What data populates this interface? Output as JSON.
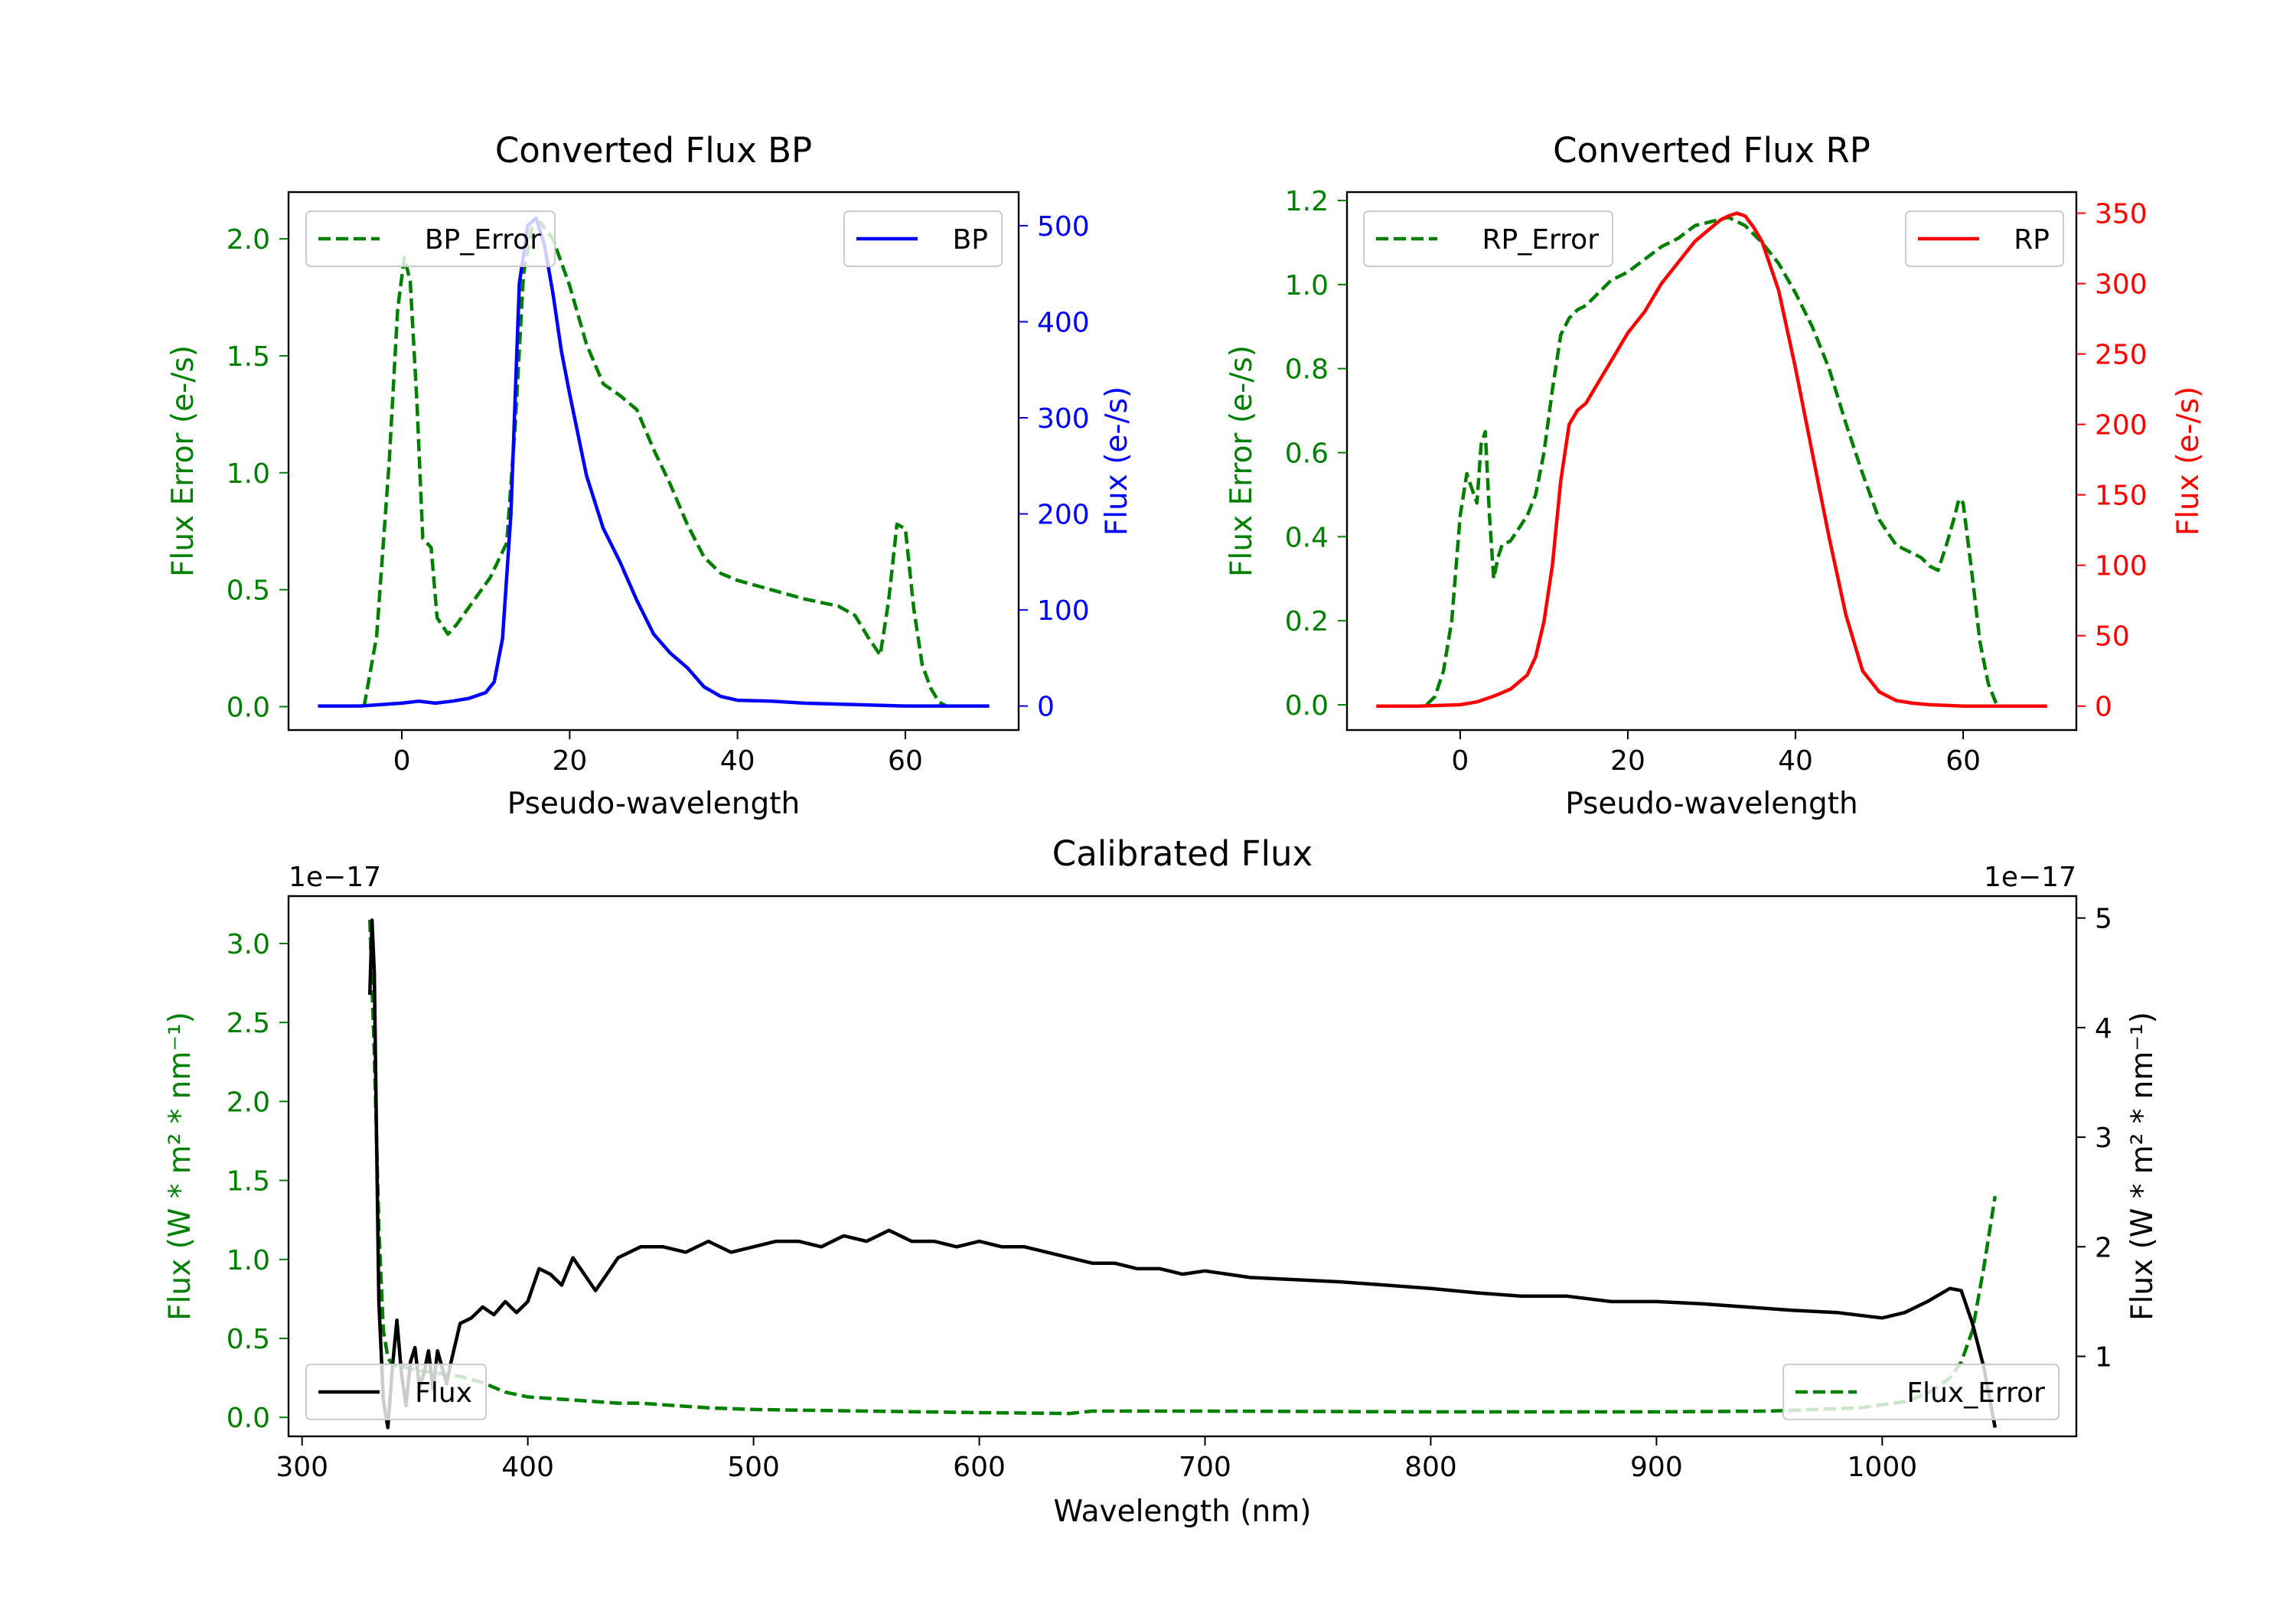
{
  "chart_data": [
    {
      "type": "line",
      "title": "Converted Flux BP",
      "xlabel": "Pseudo-wavelength",
      "ylabel_left": "Flux Error (e-/s)",
      "ylabel_right": "Flux (e-/s)",
      "xlim": [
        -13.5,
        73.5
      ],
      "ylim_left": [
        -0.1,
        2.2
      ],
      "ylim_right": [
        -25,
        535
      ],
      "xticks": [
        0,
        20,
        40,
        60
      ],
      "yticks_left": [
        0.0,
        0.5,
        1.0,
        1.5,
        2.0
      ],
      "yticks_right": [
        0,
        100,
        200,
        300,
        400,
        500
      ],
      "left_color": "#008000",
      "right_color": "#0000ff",
      "series": [
        {
          "name": "BP_Error",
          "axis": "left",
          "color": "#008000",
          "style": "dashed",
          "x": [
            -4.5,
            -3,
            -1.5,
            -0.5,
            0.3,
            1,
            1.8,
            2.5,
            3.5,
            4.2,
            5.5,
            6.5,
            8.5,
            10.5,
            12.5,
            13.5,
            14.5,
            15.5,
            16.5,
            18,
            20,
            22,
            24,
            26,
            28,
            30,
            32,
            34,
            36,
            38,
            40,
            44,
            48,
            52,
            54,
            55.5,
            57,
            58,
            59,
            60,
            61,
            62,
            63,
            64,
            65
          ],
          "values": [
            0.0,
            0.3,
            1.05,
            1.7,
            1.92,
            1.82,
            1.3,
            0.72,
            0.68,
            0.38,
            0.31,
            0.35,
            0.45,
            0.55,
            0.7,
            1.2,
            1.85,
            2.05,
            2.07,
            2.0,
            1.8,
            1.55,
            1.38,
            1.33,
            1.27,
            1.1,
            0.95,
            0.78,
            0.64,
            0.57,
            0.54,
            0.5,
            0.46,
            0.43,
            0.39,
            0.3,
            0.22,
            0.45,
            0.78,
            0.76,
            0.42,
            0.18,
            0.08,
            0.02,
            0.0
          ]
        },
        {
          "name": "BP",
          "axis": "right",
          "color": "#0000ff",
          "style": "solid",
          "x": [
            -10,
            -5,
            0,
            2,
            4,
            6,
            8,
            10,
            11,
            12,
            13,
            14,
            15,
            16,
            17,
            18,
            19,
            20,
            22,
            24,
            26,
            28,
            30,
            32,
            34,
            36,
            38,
            40,
            44,
            48,
            52,
            56,
            60,
            64,
            70
          ],
          "values": [
            0,
            0,
            3,
            5,
            3,
            5,
            8,
            14,
            25,
            70,
            200,
            440,
            500,
            508,
            480,
            430,
            370,
            325,
            240,
            185,
            150,
            110,
            75,
            55,
            40,
            20,
            10,
            6,
            5,
            3,
            2,
            1,
            0,
            0,
            0
          ]
        }
      ]
    },
    {
      "type": "line",
      "title": "Converted Flux RP",
      "xlabel": "Pseudo-wavelength",
      "ylabel_left": "Flux Error (e-/s)",
      "ylabel_right": "Flux (e-/s)",
      "xlim": [
        -13.5,
        73.5
      ],
      "ylim_left": [
        -0.06,
        1.22
      ],
      "ylim_right": [
        -17,
        365
      ],
      "xticks": [
        0,
        20,
        40,
        60
      ],
      "yticks_left": [
        0.0,
        0.2,
        0.4,
        0.6,
        0.8,
        1.0,
        1.2
      ],
      "yticks_right": [
        0,
        50,
        100,
        150,
        200,
        250,
        300,
        350
      ],
      "left_color": "#008000",
      "right_color": "#ff0000",
      "series": [
        {
          "name": "RP_Error",
          "axis": "left",
          "color": "#008000",
          "style": "dashed",
          "x": [
            -4,
            -3,
            -2,
            -1,
            0,
            0.8,
            1.3,
            2,
            2.5,
            3,
            3.5,
            4,
            4.5,
            5,
            6,
            7,
            8,
            9,
            10,
            11,
            12,
            13,
            14,
            15,
            16,
            17,
            18,
            20,
            22,
            24,
            26,
            28,
            30,
            32,
            34,
            36,
            38,
            40,
            42,
            44,
            46,
            48,
            50,
            52,
            54,
            55,
            56,
            57,
            58,
            59,
            59.5,
            60,
            61,
            62,
            63,
            64
          ],
          "values": [
            0.0,
            0.02,
            0.08,
            0.2,
            0.45,
            0.55,
            0.52,
            0.48,
            0.62,
            0.65,
            0.45,
            0.3,
            0.35,
            0.38,
            0.39,
            0.42,
            0.45,
            0.5,
            0.6,
            0.75,
            0.88,
            0.92,
            0.94,
            0.95,
            0.97,
            0.99,
            1.01,
            1.03,
            1.06,
            1.09,
            1.11,
            1.14,
            1.15,
            1.16,
            1.14,
            1.1,
            1.05,
            0.98,
            0.9,
            0.8,
            0.67,
            0.55,
            0.44,
            0.38,
            0.36,
            0.35,
            0.33,
            0.32,
            0.38,
            0.45,
            0.49,
            0.48,
            0.32,
            0.15,
            0.05,
            0.0
          ]
        },
        {
          "name": "RP",
          "axis": "right",
          "color": "#ff0000",
          "style": "solid",
          "x": [
            -10,
            -5,
            0,
            2,
            4,
            6,
            8,
            9,
            10,
            11,
            12,
            13,
            14,
            15,
            16,
            18,
            20,
            22,
            24,
            26,
            28,
            30,
            31,
            32,
            33,
            34,
            35,
            36,
            38,
            40,
            42,
            44,
            46,
            48,
            50,
            52,
            54,
            56,
            60,
            64,
            70
          ],
          "values": [
            0,
            0,
            1,
            3,
            7,
            12,
            22,
            35,
            60,
            100,
            160,
            200,
            210,
            215,
            225,
            245,
            265,
            280,
            300,
            315,
            330,
            340,
            345,
            348,
            350,
            348,
            340,
            330,
            295,
            240,
            180,
            120,
            65,
            25,
            10,
            4,
            2,
            1,
            0,
            0,
            0
          ]
        }
      ]
    },
    {
      "type": "line",
      "title": "Calibrated Flux",
      "xlabel": "Wavelength (nm)",
      "ylabel_left": "Flux (W * m² * nm⁻¹)",
      "ylabel_right": "Flux (W * m² * nm⁻¹)",
      "offset_left": "1e−17",
      "offset_right": "1e−17",
      "xlim": [
        294,
        1086
      ],
      "ylim_left": [
        -0.12,
        3.3
      ],
      "ylim_right": [
        0.27,
        5.2
      ],
      "xticks": [
        300,
        400,
        500,
        600,
        700,
        800,
        900,
        1000
      ],
      "yticks_left": [
        0.0,
        0.5,
        1.0,
        1.5,
        2.0,
        2.5,
        3.0
      ],
      "yticks_right": [
        1,
        2,
        3,
        4,
        5
      ],
      "left_color": "#008000",
      "right_color": "#000000",
      "series": [
        {
          "name": "Flux_Error",
          "axis": "left",
          "color": "#008000",
          "style": "dashed",
          "x": [
            330,
            332,
            334,
            336,
            338,
            340,
            345,
            350,
            360,
            370,
            380,
            390,
            400,
            410,
            420,
            430,
            440,
            450,
            460,
            480,
            500,
            550,
            600,
            640,
            650,
            700,
            800,
            900,
            950,
            990,
            1010,
            1020,
            1030,
            1035,
            1040,
            1045,
            1050
          ],
          "values": [
            3.15,
            2.3,
            1.2,
            0.55,
            0.38,
            0.33,
            0.32,
            0.3,
            0.28,
            0.26,
            0.22,
            0.16,
            0.13,
            0.12,
            0.11,
            0.1,
            0.09,
            0.09,
            0.08,
            0.06,
            0.05,
            0.04,
            0.03,
            0.025,
            0.04,
            0.04,
            0.035,
            0.035,
            0.04,
            0.06,
            0.1,
            0.15,
            0.25,
            0.35,
            0.55,
            0.95,
            1.4
          ]
        },
        {
          "name": "Flux",
          "axis": "right",
          "color": "#000000",
          "style": "solid",
          "x": [
            330,
            331,
            332,
            333,
            334,
            336,
            338,
            340,
            342,
            344,
            346,
            348,
            350,
            352,
            354,
            356,
            358,
            360,
            362,
            364,
            366,
            370,
            375,
            380,
            385,
            390,
            395,
            400,
            405,
            410,
            415,
            420,
            425,
            430,
            435,
            440,
            450,
            460,
            470,
            480,
            490,
            500,
            510,
            520,
            530,
            540,
            550,
            560,
            570,
            580,
            590,
            600,
            610,
            620,
            630,
            640,
            650,
            660,
            670,
            680,
            690,
            700,
            720,
            740,
            760,
            780,
            800,
            820,
            840,
            860,
            880,
            900,
            920,
            940,
            960,
            980,
            1000,
            1010,
            1020,
            1030,
            1035,
            1040,
            1045,
            1050
          ],
          "values": [
            4.3,
            4.98,
            4.5,
            3.0,
            1.5,
            0.6,
            0.35,
            0.9,
            1.33,
            0.85,
            0.55,
            0.95,
            1.08,
            0.72,
            0.85,
            1.05,
            0.7,
            1.05,
            0.9,
            0.75,
            0.95,
            1.3,
            1.35,
            1.45,
            1.38,
            1.5,
            1.4,
            1.5,
            1.8,
            1.75,
            1.65,
            1.9,
            1.75,
            1.6,
            1.75,
            1.9,
            2.0,
            2.0,
            1.95,
            2.05,
            1.95,
            2.0,
            2.05,
            2.05,
            2.0,
            2.1,
            2.05,
            2.15,
            2.05,
            2.05,
            2.0,
            2.05,
            2.0,
            2.0,
            1.95,
            1.9,
            1.85,
            1.85,
            1.8,
            1.8,
            1.75,
            1.78,
            1.72,
            1.7,
            1.68,
            1.65,
            1.62,
            1.58,
            1.55,
            1.55,
            1.5,
            1.5,
            1.48,
            1.45,
            1.42,
            1.4,
            1.35,
            1.4,
            1.5,
            1.62,
            1.6,
            1.3,
            0.9,
            0.35
          ]
        }
      ]
    }
  ]
}
